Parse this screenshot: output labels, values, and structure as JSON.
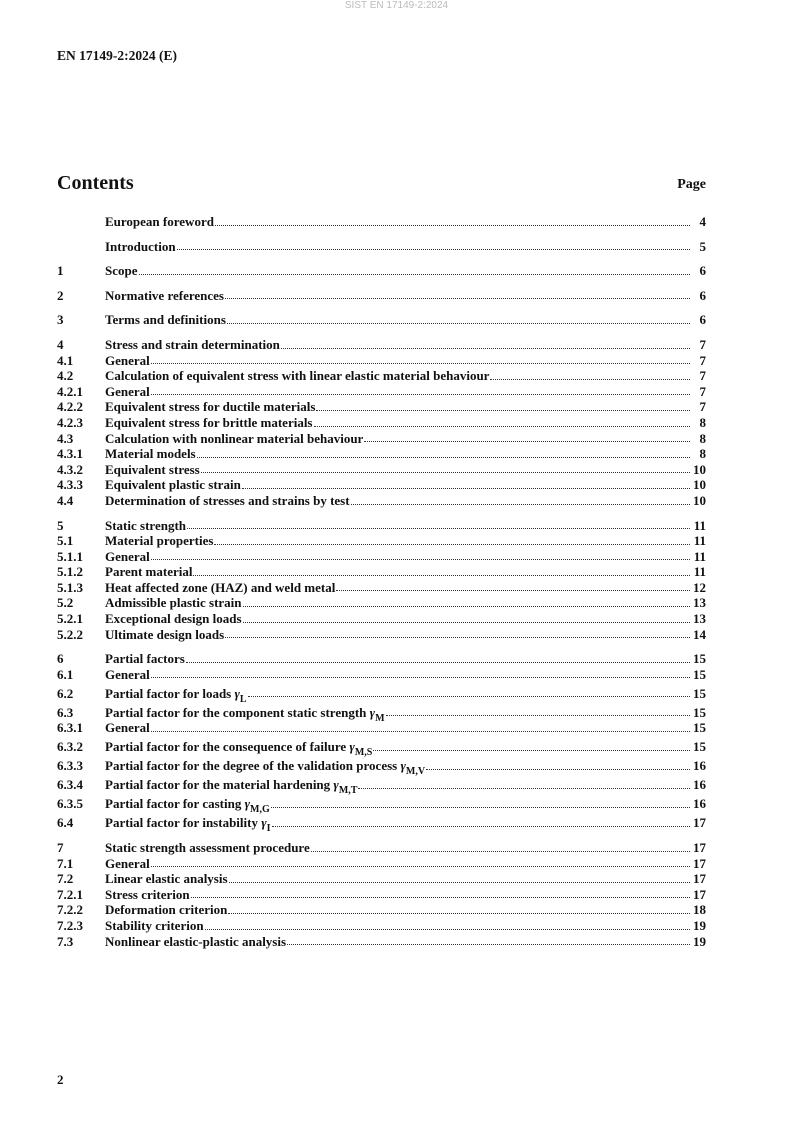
{
  "watermark": "SIST EN 17149-2:2024",
  "header": {
    "doc_id": "EN 17149-2:2024 (E)"
  },
  "contents": {
    "title": "Contents",
    "page_label": "Page"
  },
  "toc_groups": [
    [
      {
        "num": "",
        "title": "European foreword",
        "page": "4"
      }
    ],
    [
      {
        "num": "",
        "title": "Introduction",
        "page": "5"
      }
    ],
    [
      {
        "num": "1",
        "title": "Scope",
        "page": "6"
      }
    ],
    [
      {
        "num": "2",
        "title": "Normative references",
        "page": "6"
      }
    ],
    [
      {
        "num": "3",
        "title": "Terms and definitions",
        "page": "6"
      }
    ],
    [
      {
        "num": "4",
        "title": "Stress and strain determination",
        "page": "7"
      },
      {
        "num": "4.1",
        "title": "General",
        "page": "7"
      },
      {
        "num": "4.2",
        "title": "Calculation of equivalent stress with linear elastic material behaviour",
        "page": "7"
      },
      {
        "num": "4.2.1",
        "title": "General",
        "page": "7"
      },
      {
        "num": "4.2.2",
        "title": "Equivalent stress for ductile materials",
        "page": "7"
      },
      {
        "num": "4.2.3",
        "title": "Equivalent stress for brittle materials",
        "page": "8"
      },
      {
        "num": "4.3",
        "title": "Calculation with nonlinear material behaviour",
        "page": "8"
      },
      {
        "num": "4.3.1",
        "title": "Material models",
        "page": "8"
      },
      {
        "num": "4.3.2",
        "title": "Equivalent stress",
        "page": "10"
      },
      {
        "num": "4.3.3",
        "title": "Equivalent plastic strain",
        "page": "10"
      },
      {
        "num": "4.4",
        "title": "Determination of stresses and strains by test",
        "page": "10"
      }
    ],
    [
      {
        "num": "5",
        "title": "Static strength",
        "page": "11"
      },
      {
        "num": "5.1",
        "title": "Material properties",
        "page": "11"
      },
      {
        "num": "5.1.1",
        "title": "General",
        "page": "11"
      },
      {
        "num": "5.1.2",
        "title": "Parent material",
        "page": "11"
      },
      {
        "num": "5.1.3",
        "title": "Heat affected zone (HAZ) and weld metal",
        "page": "12"
      },
      {
        "num": "5.2",
        "title": "Admissible plastic strain",
        "page": "13"
      },
      {
        "num": "5.2.1",
        "title": "Exceptional design loads",
        "page": "13"
      },
      {
        "num": "5.2.2",
        "title": "Ultimate design loads",
        "page": "14"
      }
    ],
    [
      {
        "num": "6",
        "title": "Partial factors",
        "page": "15"
      },
      {
        "num": "6.1",
        "title": "General",
        "page": "15"
      },
      {
        "num": "6.2",
        "title": "Partial factor for loads ",
        "symbol": "γ",
        "sub": "L",
        "page": "15"
      },
      {
        "num": "6.3",
        "title": "Partial factor for the component static strength ",
        "symbol": "γ",
        "sub": "M",
        "page": "15"
      },
      {
        "num": "6.3.1",
        "title": "General",
        "page": "15"
      },
      {
        "num": "6.3.2",
        "title": "Partial factor for the consequence of failure ",
        "symbol": "γ",
        "sub": "M,S",
        "page": "15"
      },
      {
        "num": "6.3.3",
        "title": "Partial factor for the degree of the validation process ",
        "symbol": "γ",
        "sub": "M,V",
        "page": "16"
      },
      {
        "num": "6.3.4",
        "title": "Partial factor for the material hardening ",
        "symbol": "γ",
        "sub": "M,T",
        "page": "16"
      },
      {
        "num": "6.3.5",
        "title": "Partial factor for casting ",
        "symbol": "γ",
        "sub": "M,G",
        "page": "16"
      },
      {
        "num": "6.4",
        "title": "Partial factor for instability ",
        "symbol": "γ",
        "sub": "I",
        "page": "17"
      }
    ],
    [
      {
        "num": "7",
        "title": "Static strength assessment procedure",
        "page": "17"
      },
      {
        "num": "7.1",
        "title": "General",
        "page": "17"
      },
      {
        "num": "7.2",
        "title": "Linear elastic analysis",
        "page": "17"
      },
      {
        "num": "7.2.1",
        "title": "Stress criterion",
        "page": "17"
      },
      {
        "num": "7.2.2",
        "title": "Deformation criterion",
        "page": "18"
      },
      {
        "num": "7.2.3",
        "title": "Stability criterion",
        "page": "19"
      },
      {
        "num": "7.3",
        "title": "Nonlinear elastic-plastic analysis",
        "page": "19"
      }
    ]
  ],
  "footer": {
    "page_number": "2"
  }
}
